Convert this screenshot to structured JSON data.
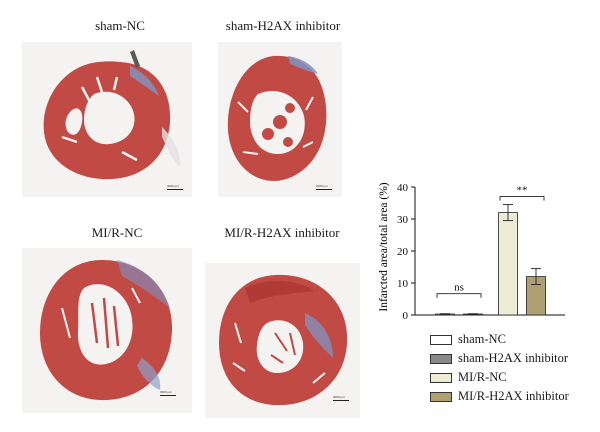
{
  "panels": [
    {
      "label": "sham-NC",
      "scale_label": "3000 μm"
    },
    {
      "label": "sham-H2AX inhibitor",
      "scale_label": "3000 μm"
    },
    {
      "label": "MI/R-NC",
      "scale_label": "3000 μm"
    },
    {
      "label": "MI/R-H2AX inhibitor",
      "scale_label": "3000 μm"
    }
  ],
  "colors": {
    "tissue_red": "#c24a44",
    "tissue_dark": "#a8332f",
    "fibrosis_blue": "#7f93c4",
    "background": "#f4f3f2"
  },
  "chart_data": {
    "type": "bar",
    "categories": [
      "sham-NC",
      "sham-H2AX inhibitor",
      "MI/R-NC",
      "MI/R-H2AX inhibitor"
    ],
    "values": [
      0.3,
      0.3,
      32,
      12
    ],
    "errors": [
      0.1,
      0.1,
      2.5,
      2.5
    ],
    "colors": [
      "#ffffff",
      "#8a8a8a",
      "#ecebd3",
      "#aea070"
    ],
    "ylabel": "Infarcted area/total area (%)",
    "ylim": [
      0,
      40
    ],
    "yticks": [
      0,
      10,
      20,
      30,
      40
    ],
    "annotations": [
      {
        "text": "ns",
        "from": 0,
        "to": 1
      },
      {
        "text": "**",
        "from": 2,
        "to": 3
      }
    ],
    "legend": [
      "sham-NC",
      "sham-H2AX inhibitor",
      "MI/R-NC",
      "MI/R-H2AX inhibitor"
    ]
  }
}
